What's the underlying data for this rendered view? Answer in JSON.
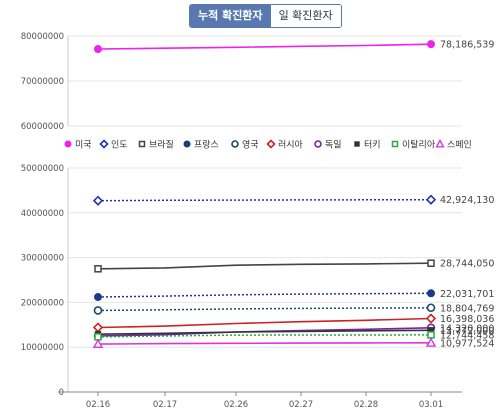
{
  "toggle": {
    "cumulative_label": "누적 확진환자",
    "daily_label": "일 확진환자"
  },
  "chart_data": {
    "type": "line",
    "x": [
      "02.16",
      "02.17",
      "02.26",
      "02.27",
      "02.28",
      "03.01"
    ],
    "grid": true,
    "legend_placement": "between panels",
    "panels": [
      {
        "name": "top",
        "ylim": [
          60000000,
          80000000
        ],
        "yticks": [
          60000000,
          70000000,
          80000000
        ],
        "series_names": [
          "미국"
        ]
      },
      {
        "name": "bottom",
        "ylim": [
          0,
          50000000
        ],
        "yticks": [
          0,
          10000000,
          20000000,
          30000000,
          40000000,
          50000000
        ],
        "series_names": [
          "인도",
          "브라질",
          "프랑스",
          "영국",
          "러시아",
          "독일",
          "터키",
          "이탈리아",
          "스페인"
        ]
      }
    ],
    "series": [
      {
        "name": "미국",
        "color": "#ee22ee",
        "marker": "dot",
        "dashed": false,
        "values": [
          77100000,
          77300000,
          77500000,
          77700000,
          77900000,
          78186539
        ],
        "end_label": "78,186,539"
      },
      {
        "name": "인도",
        "color": "#2233aa",
        "marker": "diamond",
        "dashed": true,
        "values": [
          42700000,
          42780000,
          42830000,
          42870000,
          42900000,
          42924130
        ],
        "end_label": "42,924,130"
      },
      {
        "name": "브라질",
        "color": "#444444",
        "marker": "square-open",
        "dashed": false,
        "values": [
          27500000,
          27700000,
          28300000,
          28500000,
          28600000,
          28744050
        ],
        "end_label": "28,744,050"
      },
      {
        "name": "프랑스",
        "color": "#1a3a8a",
        "marker": "dot",
        "dashed": true,
        "values": [
          21200000,
          21400000,
          21700000,
          21850000,
          21950000,
          22031701
        ],
        "end_label": "22,031,701"
      },
      {
        "name": "영국",
        "color": "#1a4a6a",
        "marker": "circle-open",
        "dashed": true,
        "values": [
          18200000,
          18350000,
          18550000,
          18650000,
          18730000,
          18804769
        ],
        "end_label": "18,804,769"
      },
      {
        "name": "러시아",
        "color": "#cc2222",
        "marker": "diamond",
        "dashed": false,
        "values": [
          14400000,
          14700000,
          15300000,
          15700000,
          16000000,
          16398036
        ],
        "end_label": "16,398,036"
      },
      {
        "name": "독일",
        "color": "#7722aa",
        "marker": "circle-open",
        "dashed": false,
        "values": [
          12500000,
          12800000,
          13400000,
          13700000,
          14000000,
          14320000
        ],
        "end_label": "14,320,000"
      },
      {
        "name": "터키",
        "color": "#333333",
        "marker": "square",
        "dashed": false,
        "values": [
          12900000,
          13100000,
          13400000,
          13500000,
          13650000,
          13772000
        ],
        "end_label": "13,772,000"
      },
      {
        "name": "이탈리아",
        "color": "#22aa44",
        "marker": "square-open",
        "dashed": true,
        "values": [
          12300000,
          12500000,
          12700000,
          12720000,
          12730000,
          12744458
        ],
        "end_label": "12,744,458"
      },
      {
        "name": "스페인",
        "color": "#dd33dd",
        "marker": "triangle",
        "dashed": false,
        "values": [
          10700000,
          10800000,
          10880000,
          10920000,
          10950000,
          10977524
        ],
        "end_label": "10,977,524"
      }
    ]
  }
}
